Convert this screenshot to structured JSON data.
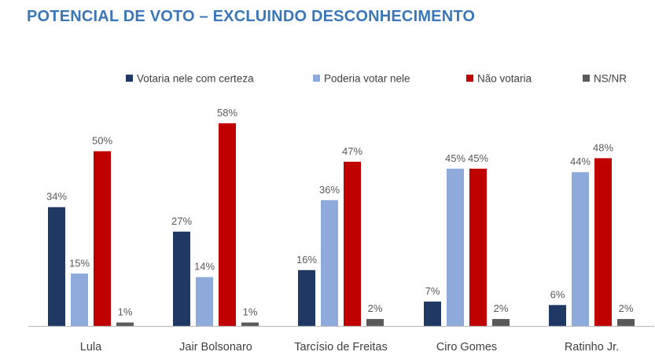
{
  "title": "POTENCIAL DE VOTO – EXCLUINDO DESCONHECIMENTO",
  "colors": {
    "title": "#3b77b8",
    "series": [
      "#1f3864",
      "#8eaadb",
      "#c00000",
      "#595959"
    ],
    "axis": "#bfbfbf",
    "text": "#404040"
  },
  "chart_data": {
    "type": "bar",
    "categories": [
      "Lula",
      "Jair Bolsonaro",
      "Tarcísio de Freitas",
      "Ciro Gomes",
      "Ratinho Jr."
    ],
    "series": [
      {
        "name": "Votaria nele com certeza",
        "values": [
          34,
          27,
          16,
          7,
          6
        ]
      },
      {
        "name": "Poderia votar nele",
        "values": [
          15,
          14,
          36,
          45,
          44
        ]
      },
      {
        "name": "Não votaria",
        "values": [
          50,
          58,
          47,
          45,
          48
        ]
      },
      {
        "name": "NS/NR",
        "values": [
          1,
          1,
          2,
          2,
          2
        ]
      }
    ],
    "value_suffix": "%",
    "ylim": [
      0,
      60
    ],
    "grid": false,
    "legend_position": "top",
    "data_labels": true
  }
}
